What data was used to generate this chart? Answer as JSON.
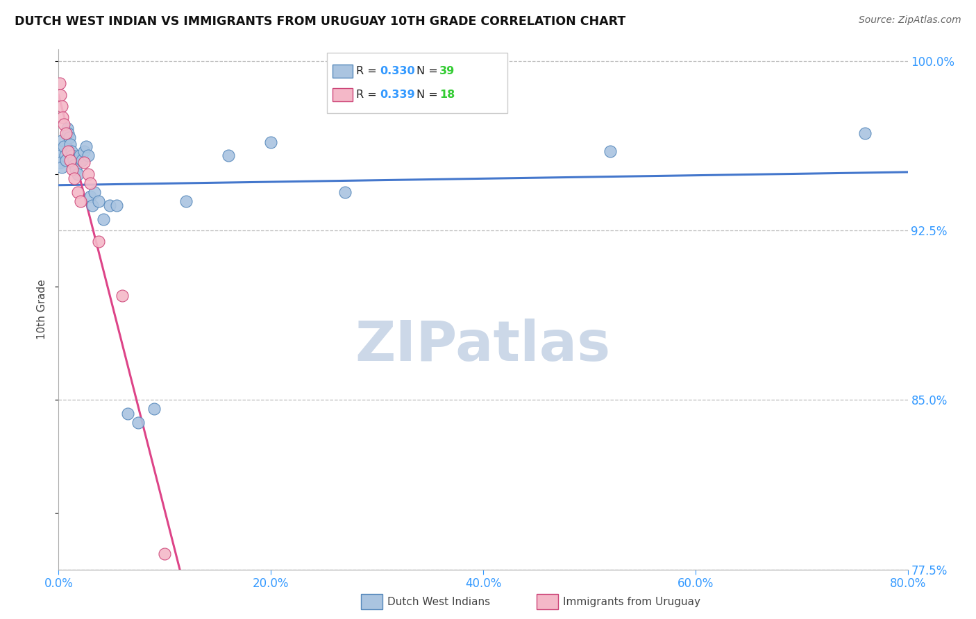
{
  "title": "DUTCH WEST INDIAN VS IMMIGRANTS FROM URUGUAY 10TH GRADE CORRELATION CHART",
  "source": "Source: ZipAtlas.com",
  "ylabel": "10th Grade",
  "xmin": 0.0,
  "xmax": 0.8,
  "ymin": 0.775,
  "ymax": 1.005,
  "xtick_labels": [
    "0.0%",
    "20.0%",
    "40.0%",
    "60.0%",
    "80.0%"
  ],
  "xtick_values": [
    0.0,
    0.2,
    0.4,
    0.6,
    0.8
  ],
  "ytick_labels": [
    "100.0%",
    "92.5%",
    "85.0%",
    "77.5%"
  ],
  "ytick_values": [
    1.0,
    0.925,
    0.85,
    0.775
  ],
  "blue_R": 0.33,
  "blue_N": 39,
  "pink_R": 0.339,
  "pink_N": 18,
  "blue_color": "#aac4e0",
  "blue_edge_color": "#5588bb",
  "pink_color": "#f4b8c8",
  "pink_edge_color": "#cc4477",
  "trendline_blue_color": "#4477cc",
  "trendline_pink_color": "#dd4488",
  "legend_R_color": "#3399ff",
  "legend_N_color": "#33cc33",
  "watermark_color": "#ccd8e8",
  "blue_x": [
    0.001,
    0.002,
    0.002,
    0.003,
    0.004,
    0.005,
    0.006,
    0.007,
    0.008,
    0.009,
    0.01,
    0.011,
    0.012,
    0.013,
    0.014,
    0.015,
    0.016,
    0.018,
    0.02,
    0.022,
    0.024,
    0.026,
    0.028,
    0.03,
    0.032,
    0.034,
    0.038,
    0.042,
    0.048,
    0.055,
    0.065,
    0.075,
    0.09,
    0.12,
    0.16,
    0.2,
    0.27,
    0.52,
    0.76
  ],
  "blue_y": [
    0.96,
    0.958,
    0.955,
    0.953,
    0.965,
    0.962,
    0.958,
    0.956,
    0.97,
    0.968,
    0.966,
    0.963,
    0.96,
    0.958,
    0.956,
    0.954,
    0.952,
    0.95,
    0.958,
    0.956,
    0.96,
    0.962,
    0.958,
    0.94,
    0.936,
    0.942,
    0.938,
    0.93,
    0.936,
    0.936,
    0.844,
    0.84,
    0.846,
    0.938,
    0.958,
    0.964,
    0.942,
    0.96,
    0.968
  ],
  "pink_x": [
    0.001,
    0.002,
    0.003,
    0.004,
    0.005,
    0.007,
    0.009,
    0.011,
    0.013,
    0.015,
    0.018,
    0.021,
    0.024,
    0.028,
    0.03,
    0.038,
    0.06,
    0.1
  ],
  "pink_y": [
    0.99,
    0.985,
    0.98,
    0.975,
    0.972,
    0.968,
    0.96,
    0.956,
    0.952,
    0.948,
    0.942,
    0.938,
    0.955,
    0.95,
    0.946,
    0.92,
    0.896,
    0.782
  ]
}
